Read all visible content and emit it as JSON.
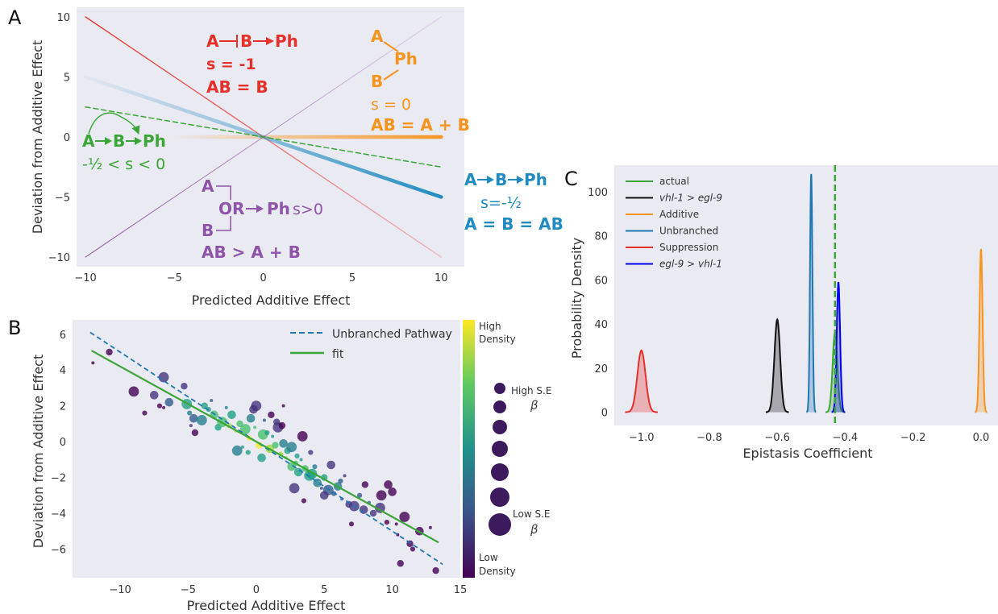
{
  "panels": {
    "a": "A",
    "b": "B",
    "c": "C"
  },
  "colors": {
    "bg": "#eaeaf2",
    "red": "#e8302a",
    "orange": "#f7941d",
    "green": "#3aa637",
    "purple": "#8e54a8",
    "blue": "#1f8bc0",
    "darkblue": "#0000ee",
    "black": "#000000"
  },
  "chart_data": [
    {
      "panel": "A",
      "type": "line",
      "xlabel": "Predicted Additive Effect",
      "ylabel": "Deviation from Additive Effect",
      "xlim": [
        -10.5,
        11.3
      ],
      "ylim": [
        -10.8,
        10.8
      ],
      "xticks": [
        -10,
        -5,
        0,
        5,
        10
      ],
      "yticks": [
        -10,
        -5,
        0,
        5,
        10
      ],
      "xticklabels": [
        "−10",
        "−5",
        "0",
        "5",
        "10"
      ],
      "yticklabels": [
        "−10",
        "−5",
        "0",
        "5",
        "10"
      ],
      "grid": false,
      "series": [
        {
          "key": "suppression",
          "slope": -1,
          "x": [
            -10,
            10
          ],
          "color": "red"
        },
        {
          "key": "additive",
          "slope": 0,
          "x": [
            -5,
            10
          ],
          "color": "orange"
        },
        {
          "key": "unbranched",
          "slope": -0.5,
          "x": [
            -10,
            10
          ],
          "color": "blue"
        },
        {
          "key": "branched",
          "slope": -0.25,
          "x": [
            -10,
            10
          ],
          "color": "green",
          "dashed": true
        },
        {
          "key": "synthetic",
          "slope": 1,
          "x": [
            -10,
            10
          ],
          "color": "purple"
        }
      ],
      "annotations": {
        "red": {
          "diagram": [
            "A",
            "B",
            "Ph"
          ],
          "s": "s = -1",
          "result": "AB = B"
        },
        "orange": {
          "a": "A",
          "b": "B",
          "ph": "Ph",
          "s": "s = 0",
          "result": "AB = A + B"
        },
        "green": {
          "diagram": [
            "A",
            "B",
            "Ph"
          ],
          "s": "-½ < s < 0"
        },
        "purple": {
          "a": "A",
          "or": "OR",
          "ph": "Ph",
          "s": "s>0",
          "b": "B",
          "result": "AB > A + B"
        },
        "blue": {
          "diagram": [
            "A",
            "B",
            "Ph"
          ],
          "s": "s=-½",
          "result": "A = B = AB"
        }
      }
    },
    {
      "panel": "B",
      "type": "scatter",
      "xlabel": "Predicted Additive Effect",
      "ylabel": "Deviation from Additive Effect",
      "xlim": [
        -13.5,
        15
      ],
      "ylim": [
        -7.6,
        6.8
      ],
      "xticks": [
        -10,
        -5,
        0,
        5,
        10,
        15
      ],
      "yticks": [
        -6,
        -4,
        -2,
        0,
        2,
        4,
        6
      ],
      "xticklabels": [
        "−10",
        "−5",
        "0",
        "5",
        "10",
        "15"
      ],
      "yticklabels": [
        "−6",
        "−4",
        "−2",
        "0",
        "2",
        "4",
        "6"
      ],
      "grid": false,
      "legend": {
        "position": "top-right",
        "entries": [
          "Unbranched Pathway",
          "fit"
        ]
      },
      "lines": [
        {
          "name": "Unbranched Pathway",
          "slope": -0.5,
          "intercept": 0,
          "x": [
            -12.2,
            13.7
          ],
          "dashed": true
        },
        {
          "name": "fit",
          "slope": -0.42,
          "intercept": 0,
          "x": [
            -12.1,
            13.4
          ]
        }
      ],
      "points": [
        [
          -12,
          4.4
        ],
        [
          -10.8,
          5.0
        ],
        [
          -6.8,
          3.6
        ],
        [
          -7.1,
          2.0
        ],
        [
          -6.4,
          2.2
        ],
        [
          -6.8,
          1.9
        ],
        [
          -5.3,
          3.1
        ],
        [
          -5.1,
          2.1
        ],
        [
          -4.9,
          1.6
        ],
        [
          -4.6,
          1.3
        ],
        [
          -4.8,
          0.9
        ],
        [
          -4.5,
          0.5
        ],
        [
          -4.0,
          1.2
        ],
        [
          -3.5,
          1.8
        ],
        [
          -3.1,
          1.5
        ],
        [
          -3.3,
          2.3
        ],
        [
          -2.8,
          0.8
        ],
        [
          -2.5,
          1.1
        ],
        [
          -2.0,
          0.9
        ],
        [
          -1.8,
          1.5
        ],
        [
          -1.5,
          0.6
        ],
        [
          -1.2,
          1.0
        ],
        [
          -0.8,
          0.7
        ],
        [
          -0.5,
          0.2
        ],
        [
          -0.2,
          1.8
        ],
        [
          -0.1,
          0.8
        ],
        [
          0.2,
          -0.2
        ],
        [
          0.5,
          0.4
        ],
        [
          0.8,
          0.5
        ],
        [
          1.0,
          -0.4
        ],
        [
          1.2,
          0.3
        ],
        [
          1.4,
          -0.2
        ],
        [
          1.6,
          0.8
        ],
        [
          1.8,
          -0.7
        ],
        [
          2.0,
          -0.1
        ],
        [
          2.2,
          -0.9
        ],
        [
          2.3,
          -0.5
        ],
        [
          2.6,
          -0.3
        ],
        [
          2.9,
          -1.2
        ],
        [
          3.1,
          -1.7
        ],
        [
          3.3,
          -1.0
        ],
        [
          3.6,
          -1.5
        ],
        [
          3.9,
          -1.9
        ],
        [
          4.3,
          -1.4
        ],
        [
          4.5,
          -2.3
        ],
        [
          4.8,
          -2.6
        ],
        [
          5.0,
          -2.0
        ],
        [
          5.3,
          -2.7
        ],
        [
          5.7,
          -2.9
        ],
        [
          6.0,
          -2.5
        ],
        [
          6.3,
          -3.2
        ],
        [
          6.8,
          -3.5
        ],
        [
          7.2,
          -3.6
        ],
        [
          7.6,
          -3.0
        ],
        [
          7.9,
          -3.8
        ],
        [
          8.3,
          -3.4
        ],
        [
          8.6,
          -4.0
        ],
        [
          9.1,
          -3.7
        ],
        [
          9.6,
          -4.5
        ],
        [
          10.0,
          -2.8
        ],
        [
          10.3,
          -4.6
        ],
        [
          10.6,
          -6.8
        ],
        [
          10.9,
          -4.2
        ],
        [
          11.5,
          -6.0
        ],
        [
          12.0,
          -5.0
        ],
        [
          12.8,
          -4.8
        ],
        [
          13.2,
          -7.2
        ],
        [
          -9.0,
          2.8
        ],
        [
          -8.2,
          1.6
        ],
        [
          -7.5,
          2.6
        ],
        [
          2.0,
          2.0
        ],
        [
          1.5,
          1.1
        ],
        [
          0.0,
          2.0
        ],
        [
          -0.6,
          -0.6
        ],
        [
          0.4,
          -0.9
        ],
        [
          -1.0,
          -0.3
        ],
        [
          1.9,
          0.9
        ],
        [
          3.4,
          0.3
        ],
        [
          4.0,
          -0.6
        ],
        [
          5.5,
          -1.3
        ],
        [
          6.5,
          -1.9
        ],
        [
          8.0,
          -2.4
        ],
        [
          9.2,
          -3.0
        ],
        [
          7.0,
          -4.6
        ],
        [
          9.7,
          -2.4
        ],
        [
          10.4,
          -5.2
        ],
        [
          11.3,
          -5.7
        ],
        [
          4.1,
          -1.8
        ],
        [
          3.0,
          -0.8
        ],
        [
          2.6,
          -1.4
        ],
        [
          -2.2,
          1.9
        ],
        [
          -3.8,
          2.0
        ],
        [
          -1.4,
          -0.5
        ],
        [
          6.2,
          -2.2
        ],
        [
          -0.4,
          1.3
        ],
        [
          0.6,
          1.2
        ],
        [
          1.1,
          1.5
        ],
        [
          2.8,
          -2.6
        ],
        [
          3.5,
          -3.3
        ],
        [
          5.0,
          -3.0
        ]
      ],
      "colorbar": {
        "top_label": [
          "High",
          "Density"
        ],
        "bottom_label": [
          "Low",
          "Density"
        ]
      },
      "size_legend": {
        "top_label": "High S.E",
        "bottom_label": "Low S.E",
        "symbol": "β"
      }
    },
    {
      "panel": "C",
      "type": "area",
      "xlabel": "Epistasis Coefficient",
      "ylabel": "Probability Density",
      "xlim": [
        -1.08,
        0.05
      ],
      "ylim": [
        -6,
        112
      ],
      "xticks": [
        -1.0,
        -0.8,
        -0.6,
        -0.4,
        -0.2,
        0.0
      ],
      "yticks": [
        0,
        20,
        40,
        60,
        80,
        100
      ],
      "xticklabels": [
        "−1.0",
        "−0.8",
        "−0.6",
        "−0.4",
        "−0.2",
        "0.0"
      ],
      "yticklabels": [
        "0",
        "20",
        "40",
        "60",
        "80",
        "100"
      ],
      "grid": false,
      "legend": {
        "position": "top-left"
      },
      "vline": {
        "x": -0.43,
        "color": "green",
        "dashed": true
      },
      "series": [
        {
          "name": "actual",
          "italic": false,
          "mean": -0.43,
          "peak": 36,
          "sd": 0.007,
          "color": "#3aa637"
        },
        {
          "name": "vhl-1 > egl-9",
          "italic": true,
          "mean": -0.6,
          "peak": 42,
          "sd": 0.0085,
          "color": "#111111"
        },
        {
          "name": "Additive",
          "italic": false,
          "mean": 0.0,
          "peak": 74,
          "sd": 0.0045,
          "color": "#f7941d"
        },
        {
          "name": "Unbranched",
          "italic": false,
          "mean": -0.5,
          "peak": 108,
          "sd": 0.0035,
          "color": "#1f77b4"
        },
        {
          "name": "Suppression",
          "italic": false,
          "mean": -1.0,
          "peak": 28,
          "sd": 0.012,
          "color": "#e8302a"
        },
        {
          "name": "egl-9 > vhl-1",
          "italic": true,
          "mean": -0.42,
          "peak": 59,
          "sd": 0.005,
          "color": "#0000ee"
        }
      ]
    }
  ]
}
